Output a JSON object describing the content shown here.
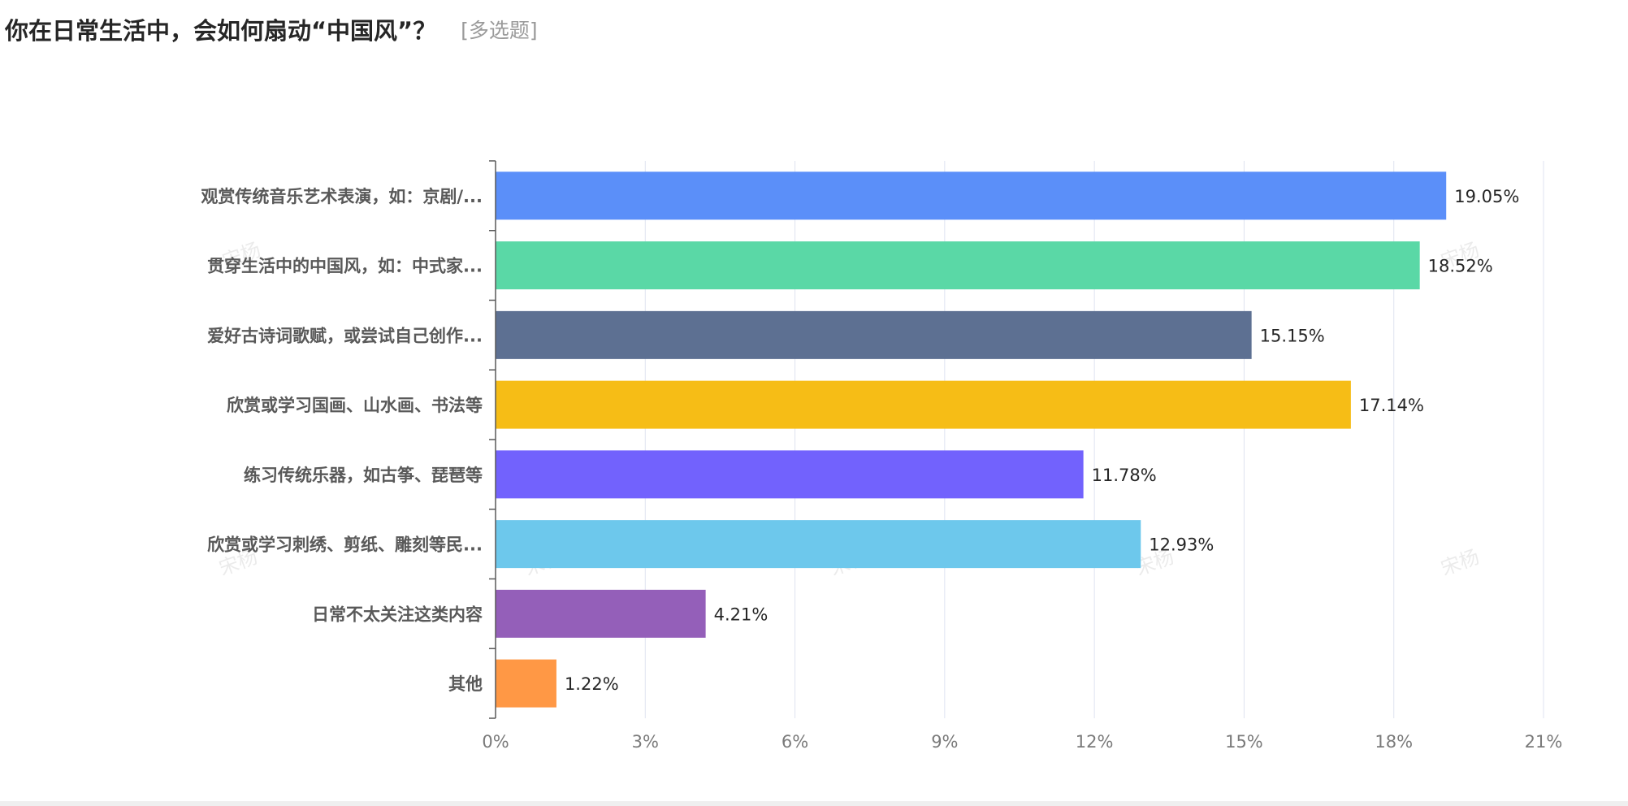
{
  "question": {
    "title": "你在日常生活中，会如何扇动“中国风”？",
    "type_tag": "[多选题]"
  },
  "watermark_text": "宋杨",
  "chart_data": {
    "type": "bar",
    "orientation": "horizontal",
    "categories": [
      "观赏传统音乐艺术表演，如：京剧/...",
      "贯穿生活中的中国风，如：中式家...",
      "爱好古诗词歌赋，或尝试自己创作...",
      "欣赏或学习国画、山水画、书法等",
      "练习传统乐器，如古筝、琵琶等",
      "欣赏或学习刺绣、剪纸、雕刻等民...",
      "日常不太关注这类内容",
      "其他"
    ],
    "values": [
      19.05,
      18.52,
      15.15,
      17.14,
      11.78,
      12.93,
      4.21,
      1.22
    ],
    "value_labels": [
      "19.05%",
      "18.52%",
      "15.15%",
      "17.14%",
      "11.78%",
      "12.93%",
      "4.21%",
      "1.22%"
    ],
    "colors": [
      "#5b8ff9",
      "#5ad8a6",
      "#5d7092",
      "#f6bd16",
      "#7262fd",
      "#6dc8ec",
      "#945fb9",
      "#ff9845"
    ],
    "x_ticks": [
      0,
      3,
      6,
      9,
      12,
      15,
      18,
      21
    ],
    "x_tick_labels": [
      "0%",
      "3%",
      "6%",
      "9%",
      "12%",
      "15%",
      "18%",
      "21%"
    ],
    "xlim": [
      0,
      21
    ],
    "grid": true,
    "legend": "none"
  }
}
